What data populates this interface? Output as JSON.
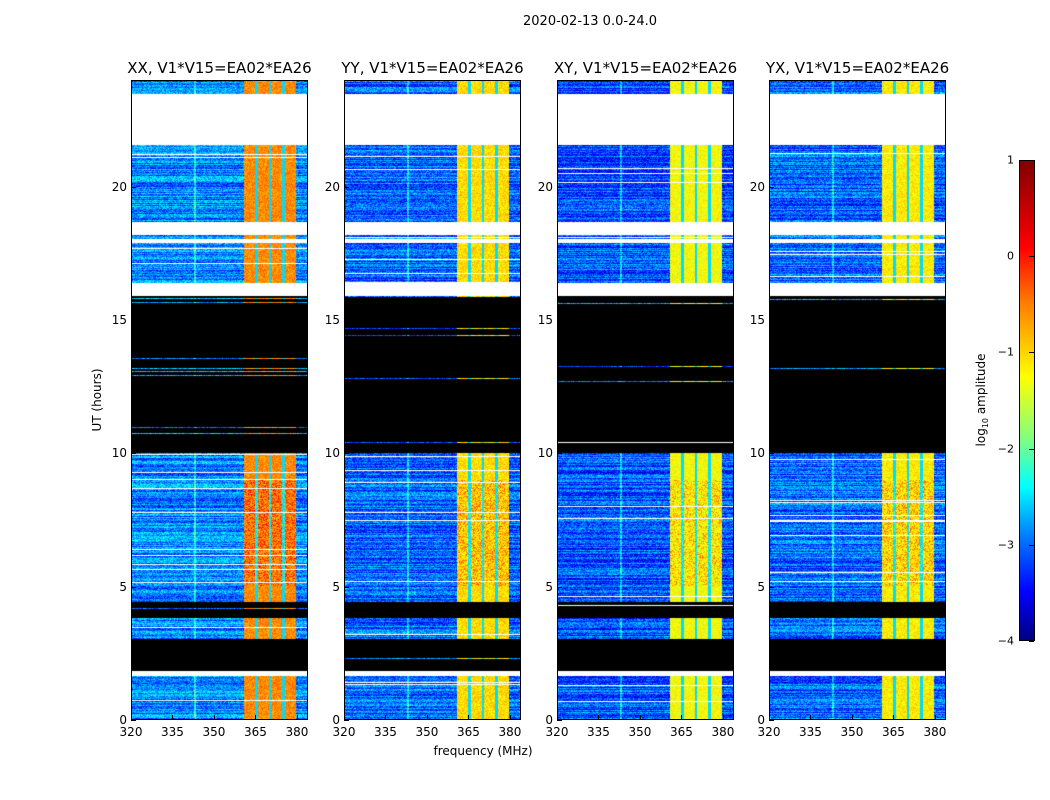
{
  "figure_title": "2020-02-13 0.0-24.0",
  "chart_data": {
    "type": "heatmap",
    "title": "2020-02-13 0.0-24.0",
    "xlabel": "frequency (MHz)",
    "ylabel": "UT (hours)",
    "xlim": [
      320,
      384
    ],
    "ylim": [
      0,
      24
    ],
    "xticks": [
      "320",
      "335",
      "350",
      "365",
      "380"
    ],
    "xtick_values": [
      320,
      335,
      350,
      365,
      380
    ],
    "yticks": [
      "0",
      "5",
      "10",
      "15",
      "20"
    ],
    "ytick_values": [
      0,
      5,
      10,
      15,
      20
    ],
    "panels": [
      {
        "title": "XX, V1*V15=EA02*EA26",
        "band_level": -0.3,
        "background_level": -2.7
      },
      {
        "title": "YY, V1*V15=EA02*EA26",
        "band_level": -0.7,
        "background_level": -2.9
      },
      {
        "title": "XY, V1*V15=EA02*EA26",
        "band_level": -0.9,
        "background_level": -3.0
      },
      {
        "title": "YX, V1*V15=EA02*EA26",
        "band_level": -0.8,
        "background_level": -2.9
      }
    ],
    "bright_band_mhz": [
      361,
      380
    ],
    "no_data_hours": [
      [
        21.6,
        23.5
      ],
      [
        18.2,
        18.7
      ],
      [
        17.9,
        18.05
      ],
      [
        15.9,
        16.4
      ],
      [
        1.6,
        1.8
      ]
    ],
    "flagged_hours": [
      [
        10.0,
        15.9
      ],
      [
        3.8,
        4.4
      ],
      [
        1.8,
        3.0
      ]
    ],
    "colorbar": {
      "label": "log10 amplitude",
      "ticks": [
        "1",
        "0",
        "−1",
        "−2",
        "−3",
        "−4"
      ],
      "tick_values": [
        1,
        0,
        -1,
        -2,
        -3,
        -4
      ],
      "range": [
        -4,
        1
      ],
      "colormap": "jet"
    }
  }
}
